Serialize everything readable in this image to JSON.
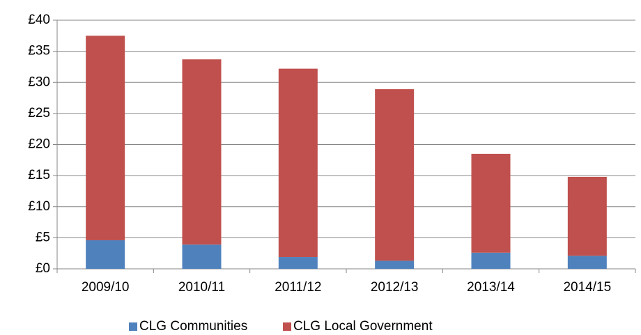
{
  "chart_data": {
    "type": "stacked-bar",
    "categories": [
      "2009/10",
      "2010/11",
      "2011/12",
      "2012/13",
      "2013/14",
      "2014/15"
    ],
    "series": [
      {
        "name": "CLG Communities",
        "color": "#4f81bd",
        "values": [
          4.6,
          3.9,
          1.9,
          1.3,
          2.6,
          2.1
        ]
      },
      {
        "name": "CLG Local Government",
        "color": "#c0504d",
        "values": [
          32.9,
          29.8,
          30.3,
          27.6,
          15.9,
          12.7
        ]
      }
    ],
    "ylim": [
      0,
      40
    ],
    "yticks": [
      {
        "value": 0,
        "label": "£0"
      },
      {
        "value": 5,
        "label": "£5"
      },
      {
        "value": 10,
        "label": "£10"
      },
      {
        "value": 15,
        "label": "£15"
      },
      {
        "value": 20,
        "label": "£20"
      },
      {
        "value": 25,
        "label": "£25"
      },
      {
        "value": 30,
        "label": "£30"
      },
      {
        "value": 35,
        "label": "£35"
      },
      {
        "value": 40,
        "label": "£40"
      }
    ],
    "grid": true,
    "legend": "bottom"
  }
}
